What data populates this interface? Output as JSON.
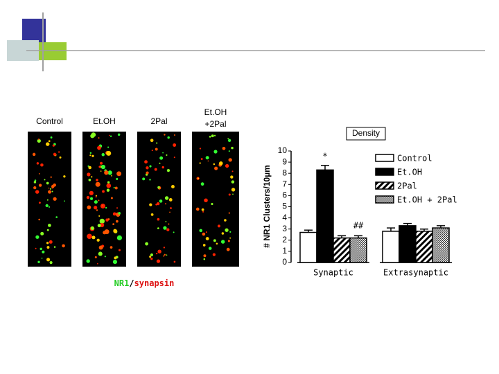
{
  "panels": [
    [
      "Control"
    ],
    [
      "Et.OH"
    ],
    [
      "2Pal"
    ],
    [
      "Et.OH",
      "+2Pal"
    ]
  ],
  "caption": [
    "NR1",
    "/",
    "synapsin"
  ],
  "chart_data": {
    "type": "bar",
    "title": "Density",
    "y_label": "# NR1 Clusters/10µm",
    "categories": [
      "Synaptic",
      "Extrasynaptic"
    ],
    "ylim": [
      0,
      10
    ],
    "yticks": [
      0,
      1,
      2,
      3,
      4,
      5,
      6,
      7,
      8,
      9,
      10
    ],
    "series": [
      {
        "name": "Control",
        "color": "#ffffff",
        "pattern": "solid",
        "values": [
          2.7,
          2.8
        ],
        "errors": [
          0.2,
          0.3
        ]
      },
      {
        "name": "Et.OH",
        "color": "#000000",
        "pattern": "solid",
        "values": [
          8.3,
          3.3
        ],
        "errors": [
          0.4,
          0.2
        ]
      },
      {
        "name": "2Pal",
        "color": "#000000",
        "pattern": "hatch",
        "values": [
          2.2,
          2.8
        ],
        "errors": [
          0.2,
          0.2
        ]
      },
      {
        "name": "Et.OH + 2Pal",
        "color": "#000000",
        "pattern": "checker",
        "values": [
          2.2,
          3.1
        ],
        "errors": [
          0.2,
          0.2
        ]
      }
    ],
    "annotations": [
      "*",
      "##"
    ]
  }
}
